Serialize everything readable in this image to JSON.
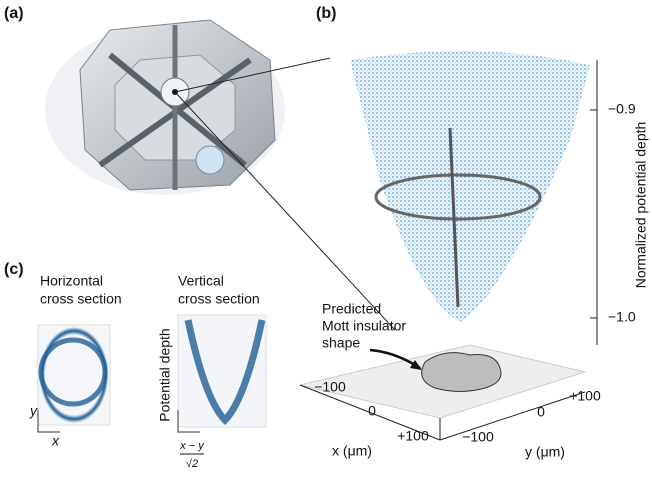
{
  "panels": {
    "a": "(a)",
    "b": "(b)",
    "c": "(c)"
  },
  "panel_b": {
    "z_axis_label": "Normalized potential depth",
    "z_ticks": [
      "−0.9",
      "−1.0"
    ],
    "annotation": [
      "Predicted",
      "Mott insulator",
      "shape"
    ],
    "x_axis_label": "x (μm)",
    "x_ticks": [
      "−100",
      "0",
      "+100"
    ],
    "y_axis_label": "y (μm)",
    "y_ticks": [
      "−100",
      "0",
      "+100"
    ]
  },
  "panel_c": {
    "horizontal_title": [
      "Horizontal",
      "cross section"
    ],
    "vertical_title": [
      "Vertical",
      "cross section"
    ],
    "vertical_y_label": "Potential depth",
    "horizontal_x": "x",
    "horizontal_y": "y",
    "vertical_x_numerator": "x − y",
    "vertical_x_denominator": "√2"
  }
}
